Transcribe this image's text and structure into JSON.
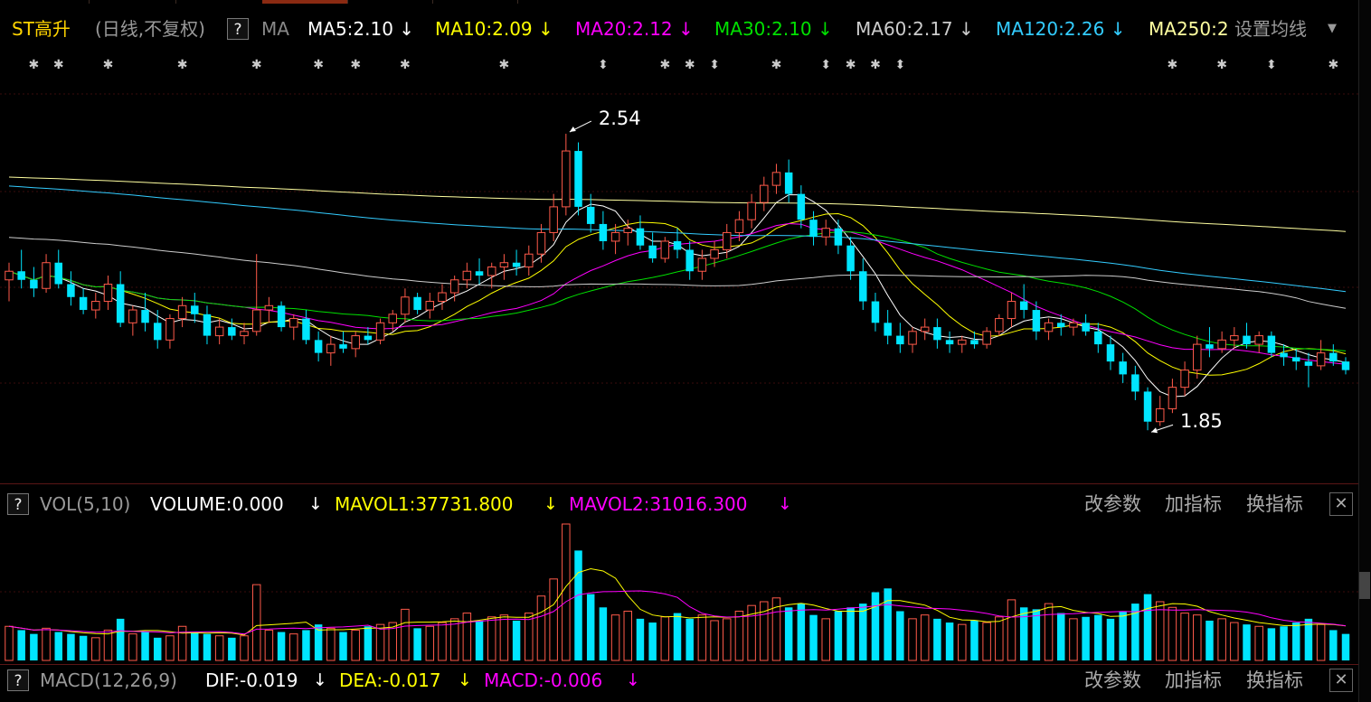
{
  "main": {
    "stock_name": "ST高升",
    "period": "(日线,不复权)",
    "help": "?",
    "indicator": "MA",
    "ma": [
      {
        "label": "MA5:2.10",
        "color": "#ffffff"
      },
      {
        "label": "MA10:2.09",
        "color": "#ffff00"
      },
      {
        "label": "MA20:2.12",
        "color": "#ff00ff"
      },
      {
        "label": "MA30:2.10",
        "color": "#00e000"
      },
      {
        "label": "MA60:2.17",
        "color": "#cccccc"
      },
      {
        "label": "MA120:2.26",
        "color": "#33ccff"
      },
      {
        "label": "MA250:2",
        "color": "#ffffa0"
      }
    ],
    "settings": "设置均线",
    "settings_icon": "caret-down-icon",
    "high_label": "2.54",
    "low_label": "1.85"
  },
  "volume": {
    "help": "?",
    "name": "VOL(5,10)",
    "volume": "VOLUME:0.000",
    "mavol1": "MAVOL1:37731.800",
    "mavol2": "MAVOL2:31016.300",
    "colors": {
      "volume": "#ffffff",
      "mavol1": "#ffff00",
      "mavol2": "#ff00ff"
    }
  },
  "macd": {
    "help": "?",
    "name": "MACD(12,26,9)",
    "dif": "DIF:-0.019",
    "dea": "DEA:-0.017",
    "macd": "MACD:-0.006",
    "colors": {
      "dif": "#ffffff",
      "dea": "#ffff00",
      "macd": "#ff00ff"
    }
  },
  "buttons": {
    "change_params": "改参数",
    "add_indicator": "加指标",
    "swap_indicator": "换指标",
    "close": "✕"
  },
  "chart_data": {
    "type": "candlestick",
    "note_price_extremes": {
      "high": 2.54,
      "low": 1.85
    },
    "up_color": "#ff5a4a",
    "down_color": "#00e5ff",
    "series_colors": {
      "MA5": "#ffffff",
      "MA10": "#ffff00",
      "MA20": "#ff00ff",
      "MA30": "#00e000",
      "MA60": "#cccccc",
      "MA120": "#33ccff",
      "MA250": "#ffffa0"
    },
    "ylim": [
      1.8,
      2.62
    ],
    "ohlc": [
      [
        2.2,
        2.24,
        2.15,
        2.22
      ],
      [
        2.22,
        2.27,
        2.18,
        2.2
      ],
      [
        2.2,
        2.23,
        2.16,
        2.18
      ],
      [
        2.18,
        2.26,
        2.17,
        2.24
      ],
      [
        2.24,
        2.27,
        2.18,
        2.19
      ],
      [
        2.19,
        2.22,
        2.14,
        2.16
      ],
      [
        2.16,
        2.18,
        2.12,
        2.13
      ],
      [
        2.13,
        2.17,
        2.11,
        2.15
      ],
      [
        2.15,
        2.21,
        2.13,
        2.19
      ],
      [
        2.19,
        2.22,
        2.09,
        2.1
      ],
      [
        2.1,
        2.14,
        2.07,
        2.13
      ],
      [
        2.13,
        2.17,
        2.08,
        2.1
      ],
      [
        2.1,
        2.13,
        2.04,
        2.06
      ],
      [
        2.06,
        2.12,
        2.04,
        2.11
      ],
      [
        2.11,
        2.16,
        2.09,
        2.14
      ],
      [
        2.14,
        2.17,
        2.1,
        2.12
      ],
      [
        2.12,
        2.14,
        2.05,
        2.07
      ],
      [
        2.07,
        2.11,
        2.05,
        2.09
      ],
      [
        2.09,
        2.11,
        2.06,
        2.07
      ],
      [
        2.07,
        2.1,
        2.05,
        2.08
      ],
      [
        2.08,
        2.26,
        2.07,
        2.13
      ],
      [
        2.13,
        2.16,
        2.1,
        2.14
      ],
      [
        2.14,
        2.15,
        2.08,
        2.09
      ],
      [
        2.09,
        2.12,
        2.06,
        2.11
      ],
      [
        2.11,
        2.13,
        2.05,
        2.06
      ],
      [
        2.06,
        2.08,
        2.01,
        2.03
      ],
      [
        2.03,
        2.07,
        2.0,
        2.05
      ],
      [
        2.05,
        2.08,
        2.03,
        2.04
      ],
      [
        2.04,
        2.08,
        2.02,
        2.07
      ],
      [
        2.07,
        2.09,
        2.05,
        2.06
      ],
      [
        2.06,
        2.11,
        2.05,
        2.1
      ],
      [
        2.1,
        2.13,
        2.08,
        2.12
      ],
      [
        2.12,
        2.18,
        2.1,
        2.16
      ],
      [
        2.16,
        2.17,
        2.12,
        2.13
      ],
      [
        2.13,
        2.17,
        2.11,
        2.15
      ],
      [
        2.15,
        2.19,
        2.13,
        2.17
      ],
      [
        2.17,
        2.21,
        2.15,
        2.2
      ],
      [
        2.2,
        2.24,
        2.18,
        2.22
      ],
      [
        2.22,
        2.25,
        2.19,
        2.21
      ],
      [
        2.21,
        2.24,
        2.18,
        2.23
      ],
      [
        2.23,
        2.26,
        2.2,
        2.24
      ],
      [
        2.24,
        2.27,
        2.21,
        2.23
      ],
      [
        2.23,
        2.28,
        2.21,
        2.26
      ],
      [
        2.26,
        2.33,
        2.24,
        2.31
      ],
      [
        2.31,
        2.4,
        2.29,
        2.37
      ],
      [
        2.37,
        2.54,
        2.35,
        2.5
      ],
      [
        2.5,
        2.52,
        2.35,
        2.37
      ],
      [
        2.37,
        2.4,
        2.31,
        2.33
      ],
      [
        2.33,
        2.36,
        2.27,
        2.29
      ],
      [
        2.29,
        2.33,
        2.26,
        2.31
      ],
      [
        2.31,
        2.34,
        2.28,
        2.32
      ],
      [
        2.32,
        2.35,
        2.27,
        2.28
      ],
      [
        2.28,
        2.31,
        2.24,
        2.25
      ],
      [
        2.25,
        2.3,
        2.24,
        2.29
      ],
      [
        2.29,
        2.32,
        2.25,
        2.27
      ],
      [
        2.27,
        2.29,
        2.2,
        2.22
      ],
      [
        2.22,
        2.27,
        2.2,
        2.25
      ],
      [
        2.25,
        2.29,
        2.23,
        2.27
      ],
      [
        2.27,
        2.33,
        2.25,
        2.31
      ],
      [
        2.31,
        2.36,
        2.29,
        2.34
      ],
      [
        2.34,
        2.4,
        2.32,
        2.38
      ],
      [
        2.38,
        2.44,
        2.36,
        2.42
      ],
      [
        2.42,
        2.47,
        2.4,
        2.45
      ],
      [
        2.45,
        2.48,
        2.38,
        2.4
      ],
      [
        2.4,
        2.42,
        2.32,
        2.34
      ],
      [
        2.34,
        2.36,
        2.28,
        2.3
      ],
      [
        2.3,
        2.34,
        2.28,
        2.32
      ],
      [
        2.32,
        2.34,
        2.26,
        2.28
      ],
      [
        2.28,
        2.3,
        2.2,
        2.22
      ],
      [
        2.22,
        2.25,
        2.13,
        2.15
      ],
      [
        2.15,
        2.17,
        2.08,
        2.1
      ],
      [
        2.1,
        2.13,
        2.05,
        2.07
      ],
      [
        2.07,
        2.1,
        2.03,
        2.05
      ],
      [
        2.05,
        2.09,
        2.03,
        2.08
      ],
      [
        2.08,
        2.11,
        2.06,
        2.09
      ],
      [
        2.09,
        2.11,
        2.04,
        2.06
      ],
      [
        2.06,
        2.08,
        2.03,
        2.05
      ],
      [
        2.05,
        2.07,
        2.03,
        2.06
      ],
      [
        2.06,
        2.08,
        2.04,
        2.05
      ],
      [
        2.05,
        2.09,
        2.04,
        2.08
      ],
      [
        2.08,
        2.12,
        2.07,
        2.11
      ],
      [
        2.11,
        2.17,
        2.09,
        2.15
      ],
      [
        2.15,
        2.19,
        2.11,
        2.13
      ],
      [
        2.13,
        2.15,
        2.06,
        2.08
      ],
      [
        2.08,
        2.11,
        2.06,
        2.1
      ],
      [
        2.1,
        2.12,
        2.07,
        2.09
      ],
      [
        2.09,
        2.11,
        2.07,
        2.1
      ],
      [
        2.1,
        2.12,
        2.07,
        2.08
      ],
      [
        2.08,
        2.1,
        2.03,
        2.05
      ],
      [
        2.05,
        2.07,
        1.99,
        2.01
      ],
      [
        2.01,
        2.03,
        1.96,
        1.98
      ],
      [
        1.98,
        2.0,
        1.92,
        1.94
      ],
      [
        1.94,
        1.95,
        1.85,
        1.87
      ],
      [
        1.87,
        1.93,
        1.86,
        1.9
      ],
      [
        1.9,
        1.97,
        1.89,
        1.95
      ],
      [
        1.95,
        2.01,
        1.93,
        1.99
      ],
      [
        1.99,
        2.07,
        1.97,
        2.05
      ],
      [
        2.05,
        2.09,
        2.02,
        2.04
      ],
      [
        2.04,
        2.08,
        2.03,
        2.06
      ],
      [
        2.06,
        2.09,
        2.04,
        2.07
      ],
      [
        2.07,
        2.1,
        2.04,
        2.05
      ],
      [
        2.05,
        2.08,
        2.03,
        2.07
      ],
      [
        2.07,
        2.08,
        2.02,
        2.03
      ],
      [
        2.03,
        2.05,
        2.0,
        2.02
      ],
      [
        2.02,
        2.04,
        1.99,
        2.01
      ],
      [
        2.01,
        2.03,
        1.95,
        2.0
      ],
      [
        2.0,
        2.06,
        1.99,
        2.03
      ],
      [
        2.03,
        2.05,
        2.0,
        2.01
      ],
      [
        2.01,
        2.02,
        1.98,
        1.99
      ]
    ],
    "volume": [
      18,
      16,
      14,
      17,
      15,
      14,
      13,
      12,
      16,
      22,
      14,
      15,
      12,
      13,
      18,
      15,
      14,
      13,
      12,
      13,
      40,
      16,
      15,
      14,
      16,
      19,
      17,
      15,
      16,
      18,
      19,
      20,
      27,
      17,
      18,
      20,
      22,
      25,
      21,
      23,
      24,
      21,
      25,
      34,
      43,
      72,
      58,
      35,
      28,
      24,
      26,
      22,
      20,
      23,
      25,
      22,
      24,
      21,
      22,
      26,
      29,
      31,
      33,
      28,
      30,
      24,
      22,
      26,
      28,
      30,
      36,
      38,
      26,
      22,
      24,
      22,
      20,
      19,
      21,
      20,
      23,
      32,
      28,
      27,
      30,
      25,
      22,
      23,
      24,
      22,
      26,
      30,
      35,
      31,
      28,
      25,
      24,
      21,
      22,
      20,
      19,
      18,
      17,
      18,
      20,
      22,
      19,
      16,
      14
    ]
  }
}
